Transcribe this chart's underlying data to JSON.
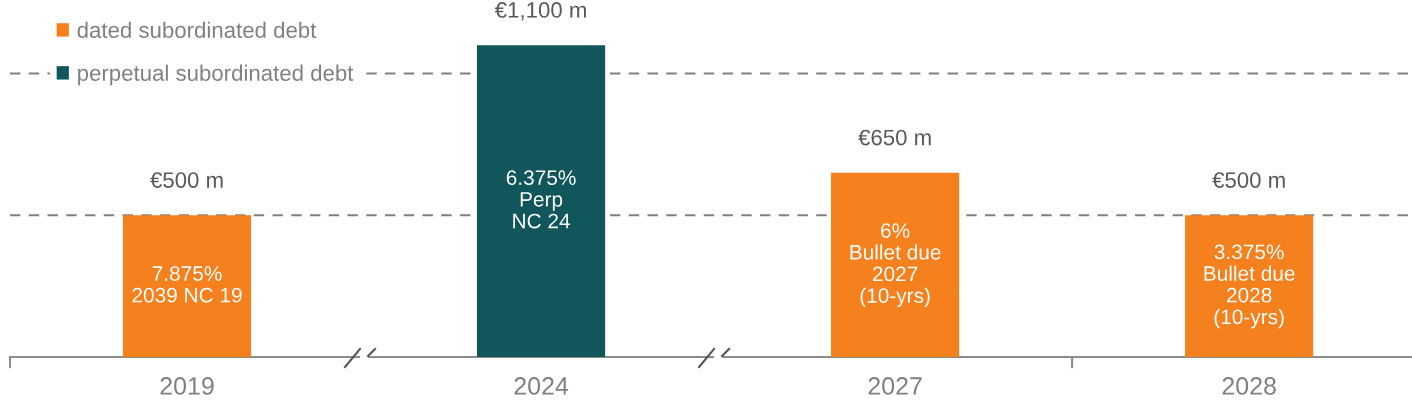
{
  "chart_data": {
    "type": "bar",
    "stacked": true,
    "categories": [
      "2019",
      "2024",
      "2027",
      "2028"
    ],
    "series": [
      {
        "name": "dated subordinated debt",
        "color": "#f4801e",
        "values": [
          500,
          null,
          650,
          500
        ],
        "value_labels": [
          "€500 m",
          null,
          "€650 m",
          "€500 m"
        ]
      },
      {
        "name": "perpetual subordinated debt",
        "color": "#11565a",
        "values": [
          null,
          1100,
          null,
          null
        ],
        "value_labels": [
          null,
          "€1,100 m",
          null,
          null
        ]
      }
    ],
    "ref_lines": [
      {
        "axis": "y",
        "value": 500,
        "color": "#808080",
        "line_style": "dashed"
      },
      {
        "axis": "y",
        "value": 1000,
        "color": "#808080",
        "line_style": "dashed"
      }
    ],
    "annotations": [
      "7.875%\n2039 NC 19",
      "6.375%\nPerp\nNC 24",
      "6%\nBullet due\n2027\n(10-yrs)",
      "3.375%\nBullet due\n2028\n(10-yrs)"
    ],
    "legend": "top left",
    "grid": false
  }
}
